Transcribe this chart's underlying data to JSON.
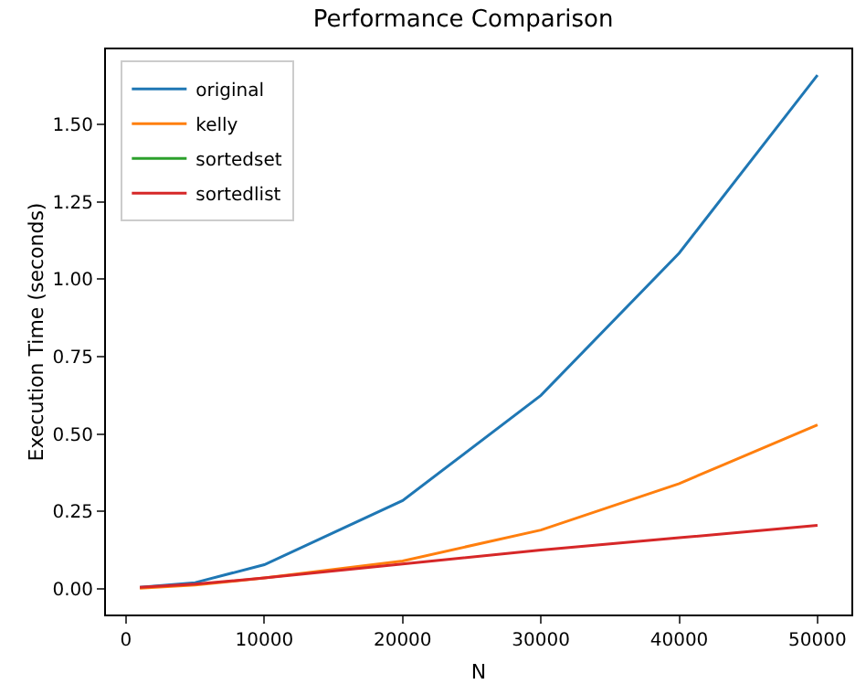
{
  "chart_data": {
    "type": "line",
    "title": "Performance Comparison",
    "xlabel": "N",
    "ylabel": "Execution Time (seconds)",
    "x": [
      1000,
      5000,
      10000,
      20000,
      30000,
      40000,
      50000
    ],
    "series": [
      {
        "name": "original",
        "color": "#1f77b4",
        "values": [
          0.005,
          0.02,
          0.078,
          0.285,
          0.625,
          1.085,
          1.66
        ]
      },
      {
        "name": "kelly",
        "color": "#ff7f0e",
        "values": [
          0.002,
          0.012,
          0.035,
          0.09,
          0.19,
          0.34,
          0.53
        ]
      },
      {
        "name": "sortedset",
        "color": "#2ca02c",
        "values": [
          null,
          null,
          null,
          null,
          null,
          null,
          null
        ]
      },
      {
        "name": "sortedlist",
        "color": "#d62728",
        "values": [
          0.005,
          0.015,
          0.035,
          0.08,
          0.125,
          0.165,
          0.205
        ]
      }
    ],
    "xlim": [
      -1450,
      52450
    ],
    "ylim": [
      -0.083,
      1.743
    ],
    "xticks": [
      0,
      10000,
      20000,
      30000,
      40000,
      50000
    ],
    "yticks": [
      {
        "value": 0,
        "label": "0.00"
      },
      {
        "value": 0.25,
        "label": "0.25"
      },
      {
        "value": 0.5,
        "label": "0.50"
      },
      {
        "value": 0.75,
        "label": "0.75"
      },
      {
        "value": 1,
        "label": "1.00"
      },
      {
        "value": 1.25,
        "label": "1.25"
      },
      {
        "value": 1.5,
        "label": "1.50"
      }
    ],
    "grid": false,
    "legend": "top left",
    "marker": "none",
    "line_style": "solid"
  }
}
